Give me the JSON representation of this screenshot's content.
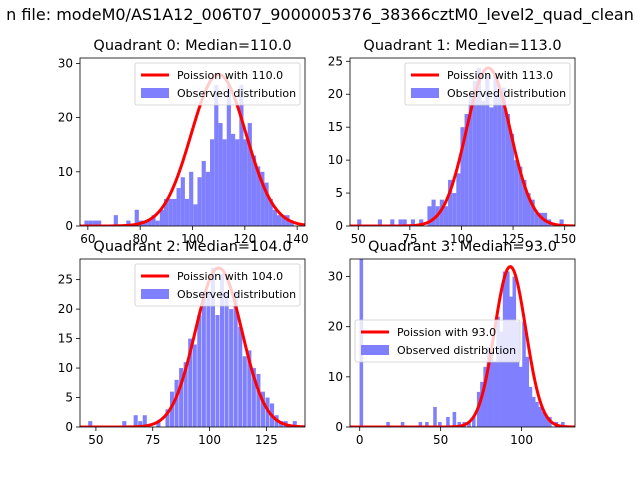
{
  "figure": {
    "suptitle": "n file: modeM0/AS1A12_006T07_9000005376_38366cztM0_level2_quad_clean"
  },
  "colors": {
    "fit_line": "#ff0000",
    "hist_bar": "#8080ff"
  },
  "chart_data": [
    {
      "type": "bar",
      "title": "Quadrant 0: Median=110.0",
      "xlim": [
        57,
        143
      ],
      "ylim": [
        0,
        31
      ],
      "xticks": [
        60,
        80,
        100,
        120,
        140
      ],
      "yticks": [
        0,
        10,
        20,
        30
      ],
      "legend_placement": "upper-right",
      "legend": [
        "Poission with 110.0",
        "Observed distribution"
      ],
      "poisson_mean": 110.0,
      "fit_peak": 28,
      "bin_width": 1.6,
      "bins": [
        [
          59.5,
          1
        ],
        [
          61.1,
          1
        ],
        [
          62.7,
          1
        ],
        [
          64.3,
          1
        ],
        [
          67.5,
          0
        ],
        [
          69.1,
          0
        ],
        [
          70.7,
          2
        ],
        [
          72.3,
          0
        ],
        [
          73.9,
          0
        ],
        [
          75.5,
          1
        ],
        [
          77.1,
          0
        ],
        [
          78.7,
          3
        ],
        [
          80.3,
          1
        ],
        [
          81.9,
          1
        ],
        [
          83.5,
          1
        ],
        [
          85.1,
          2
        ],
        [
          86.7,
          1
        ],
        [
          88.3,
          3
        ],
        [
          89.9,
          5
        ],
        [
          91.5,
          5
        ],
        [
          93.1,
          5
        ],
        [
          94.7,
          7
        ],
        [
          96.3,
          9
        ],
        [
          97.9,
          5
        ],
        [
          99.5,
          10
        ],
        [
          101.1,
          4
        ],
        [
          102.7,
          9
        ],
        [
          104.3,
          12
        ],
        [
          105.9,
          10
        ],
        [
          107.5,
          16
        ],
        [
          109.1,
          26
        ],
        [
          110.7,
          19
        ],
        [
          112.3,
          16
        ],
        [
          113.9,
          26
        ],
        [
          115.5,
          17
        ],
        [
          117.1,
          16
        ],
        [
          118.7,
          26
        ],
        [
          120.3,
          16
        ],
        [
          121.9,
          19
        ],
        [
          123.5,
          13
        ],
        [
          125.1,
          11
        ],
        [
          126.7,
          10
        ],
        [
          128.3,
          8
        ],
        [
          129.9,
          5
        ],
        [
          131.5,
          3
        ],
        [
          133.1,
          2
        ],
        [
          134.7,
          2
        ],
        [
          136.3,
          2
        ],
        [
          137.9,
          1
        ],
        [
          139.5,
          0
        ]
      ]
    },
    {
      "type": "bar",
      "title": "Quadrant 1: Median=113.0",
      "xlim": [
        46,
        155
      ],
      "ylim": [
        0,
        25.5
      ],
      "xticks": [
        50,
        75,
        100,
        125,
        150
      ],
      "yticks": [
        0,
        5,
        10,
        15,
        20,
        25
      ],
      "legend_placement": "upper-right",
      "legend": [
        "Poission with 113.0",
        "Observed distribution"
      ],
      "poisson_mean": 113.0,
      "fit_peak": 24,
      "bin_width": 2.0,
      "bins": [
        [
          50.5,
          1
        ],
        [
          54.5,
          0
        ],
        [
          60.5,
          1
        ],
        [
          64.5,
          0
        ],
        [
          66.5,
          1
        ],
        [
          70.5,
          1
        ],
        [
          72.5,
          1
        ],
        [
          76.5,
          1
        ],
        [
          80.5,
          1
        ],
        [
          84.5,
          3
        ],
        [
          86.5,
          4
        ],
        [
          88.5,
          3
        ],
        [
          90.5,
          4
        ],
        [
          92.5,
          3
        ],
        [
          94.5,
          7
        ],
        [
          96.5,
          5
        ],
        [
          98.5,
          8
        ],
        [
          100.5,
          15
        ],
        [
          102.5,
          17
        ],
        [
          104.5,
          20
        ],
        [
          106.5,
          22
        ],
        [
          108.5,
          24
        ],
        [
          110.5,
          19
        ],
        [
          112.5,
          23
        ],
        [
          114.5,
          18
        ],
        [
          116.5,
          23
        ],
        [
          118.5,
          20
        ],
        [
          120.5,
          21
        ],
        [
          122.5,
          17
        ],
        [
          124.5,
          14
        ],
        [
          126.5,
          10
        ],
        [
          128.5,
          9
        ],
        [
          130.5,
          7
        ],
        [
          132.5,
          5
        ],
        [
          134.5,
          4
        ],
        [
          136.5,
          2
        ],
        [
          138.5,
          2
        ],
        [
          140.5,
          2
        ],
        [
          142.5,
          1
        ],
        [
          148.5,
          1
        ]
      ]
    },
    {
      "type": "bar",
      "title": "Quadrant 2: Median=104.0",
      "xlim": [
        43,
        142
      ],
      "ylim": [
        0,
        28.5
      ],
      "xticks": [
        50,
        75,
        100,
        125
      ],
      "yticks": [
        0,
        5,
        10,
        15,
        20,
        25
      ],
      "legend_placement": "upper-right",
      "legend": [
        "Poission with 104.0",
        "Observed distribution"
      ],
      "poisson_mean": 104.0,
      "fit_peak": 27,
      "bin_width": 1.8,
      "bins": [
        [
          47.5,
          1
        ],
        [
          62.5,
          1
        ],
        [
          64.5,
          0
        ],
        [
          67.5,
          2
        ],
        [
          69.5,
          1
        ],
        [
          71.5,
          2
        ],
        [
          77.5,
          1
        ],
        [
          81.5,
          3
        ],
        [
          83.5,
          6
        ],
        [
          85.5,
          8
        ],
        [
          87.5,
          10
        ],
        [
          89.5,
          11
        ],
        [
          91.5,
          15
        ],
        [
          93.5,
          14
        ],
        [
          95.5,
          19
        ],
        [
          97.5,
          23
        ],
        [
          99.5,
          23
        ],
        [
          101.5,
          27
        ],
        [
          103.5,
          19
        ],
        [
          105.5,
          26
        ],
        [
          107.5,
          23
        ],
        [
          109.5,
          20
        ],
        [
          111.5,
          23
        ],
        [
          113.5,
          17
        ],
        [
          115.5,
          12
        ],
        [
          117.5,
          13
        ],
        [
          119.5,
          10
        ],
        [
          121.5,
          9
        ],
        [
          123.5,
          6
        ],
        [
          125.5,
          5
        ],
        [
          127.5,
          4
        ],
        [
          129.5,
          2
        ],
        [
          131.5,
          1
        ],
        [
          133.5,
          1
        ],
        [
          137.5,
          1
        ]
      ]
    },
    {
      "type": "bar",
      "title": "Quadrant 3: Median=93.0",
      "xlim": [
        -6,
        133
      ],
      "ylim": [
        0,
        33.5
      ],
      "xticks": [
        0,
        50,
        100
      ],
      "yticks": [
        0,
        10,
        20,
        30
      ],
      "legend_placement": "center-left",
      "legend": [
        "Poission with 93.0",
        "Observed distribution"
      ],
      "poisson_mean": 93.0,
      "fit_peak": 32,
      "bin_width": 2.2,
      "bins": [
        [
          1,
          33.5
        ],
        [
          17.5,
          1
        ],
        [
          26.5,
          1
        ],
        [
          37.5,
          1
        ],
        [
          41.5,
          1
        ],
        [
          46.5,
          4
        ],
        [
          49.5,
          1
        ],
        [
          54.5,
          2
        ],
        [
          58.5,
          3
        ],
        [
          61.5,
          1
        ],
        [
          64.5,
          1
        ],
        [
          67.5,
          1
        ],
        [
          70.5,
          2
        ],
        [
          73.5,
          7
        ],
        [
          75.5,
          9
        ],
        [
          77.5,
          12
        ],
        [
          79.5,
          16
        ],
        [
          81.5,
          15
        ],
        [
          83.5,
          13
        ],
        [
          85.5,
          22
        ],
        [
          87.5,
          19
        ],
        [
          89.5,
          31
        ],
        [
          91.5,
          31
        ],
        [
          93.5,
          26
        ],
        [
          95.5,
          30
        ],
        [
          97.5,
          21
        ],
        [
          99.5,
          12
        ],
        [
          101.5,
          21
        ],
        [
          103.5,
          14
        ],
        [
          105.5,
          8
        ],
        [
          107.5,
          6
        ],
        [
          109.5,
          5
        ],
        [
          111.5,
          4
        ],
        [
          113.5,
          3
        ],
        [
          115.5,
          2
        ],
        [
          117.5,
          2
        ],
        [
          121.5,
          1
        ],
        [
          125.5,
          1
        ]
      ]
    }
  ]
}
